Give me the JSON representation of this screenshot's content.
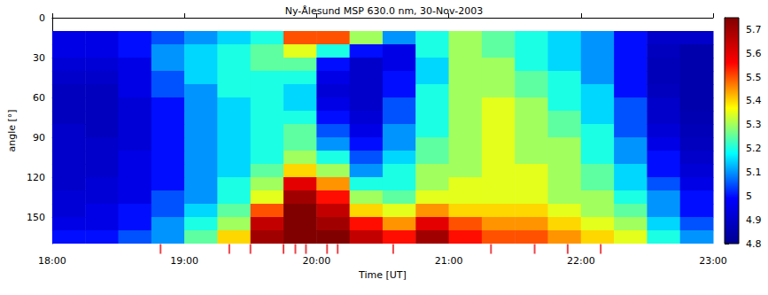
{
  "chart_data": {
    "type": "heatmap",
    "title": "Ny-Ålesund MSP 630.0 nm, 30-Nov-2003",
    "x_label": "Time [UT]",
    "y_label": "angle [°]",
    "grid": false,
    "xlim": [
      18,
      23
    ],
    "xticks": [
      {
        "value": 18,
        "label": "18:00"
      },
      {
        "value": 19,
        "label": "19:00"
      },
      {
        "value": 20,
        "label": "20:00"
      },
      {
        "value": 21,
        "label": "21:00"
      },
      {
        "value": 22,
        "label": "22:00"
      },
      {
        "value": 23,
        "label": "23:00"
      }
    ],
    "ylim": [
      0,
      170
    ],
    "yticks": [
      0,
      30,
      60,
      90,
      120,
      150
    ],
    "x_edges": [
      18,
      18.25,
      18.5,
      18.75,
      19,
      19.25,
      19.5,
      19.75,
      20,
      20.25,
      20.5,
      20.75,
      21,
      21.25,
      21.5,
      21.75,
      22,
      22.25,
      22.5,
      22.75,
      23
    ],
    "y_edges": [
      10,
      20,
      30,
      40,
      50,
      60,
      70,
      80,
      90,
      100,
      110,
      120,
      130,
      140,
      150,
      160,
      170
    ],
    "cells": [
      [
        4.95,
        4.95,
        5.0,
        5.05,
        5.1,
        5.15,
        5.2,
        5.5,
        5.5,
        5.3,
        5.1,
        5.2,
        5.3,
        5.25,
        5.2,
        5.15,
        5.1,
        5.0,
        4.9,
        4.9
      ],
      [
        4.95,
        4.95,
        5.0,
        5.1,
        5.15,
        5.2,
        5.25,
        5.35,
        5.2,
        5.0,
        4.95,
        5.2,
        5.3,
        5.25,
        5.2,
        5.15,
        5.1,
        5.0,
        4.88,
        4.85
      ],
      [
        4.92,
        4.92,
        4.95,
        5.1,
        5.15,
        5.2,
        5.25,
        5.25,
        5.0,
        4.9,
        4.95,
        5.15,
        5.3,
        5.3,
        5.2,
        5.15,
        5.1,
        5.0,
        4.87,
        4.85
      ],
      [
        4.9,
        4.9,
        4.95,
        5.05,
        5.15,
        5.2,
        5.2,
        5.2,
        4.95,
        4.9,
        5.0,
        5.15,
        5.3,
        5.3,
        5.25,
        5.2,
        5.1,
        5.0,
        4.87,
        4.85
      ],
      [
        4.88,
        4.88,
        4.95,
        5.05,
        5.1,
        5.2,
        5.2,
        5.15,
        4.92,
        4.9,
        5.0,
        5.2,
        5.3,
        5.3,
        5.25,
        5.2,
        5.15,
        5.0,
        4.88,
        4.85
      ],
      [
        4.88,
        4.88,
        4.92,
        5.0,
        5.1,
        5.15,
        5.2,
        5.15,
        4.95,
        4.9,
        5.05,
        5.2,
        5.3,
        5.35,
        5.3,
        5.2,
        5.15,
        5.05,
        4.9,
        4.85
      ],
      [
        4.88,
        4.88,
        4.92,
        5.0,
        5.1,
        5.15,
        5.2,
        5.2,
        5.0,
        4.92,
        5.05,
        5.2,
        5.3,
        5.35,
        5.3,
        5.25,
        5.15,
        5.05,
        4.9,
        4.86
      ],
      [
        4.9,
        4.88,
        4.92,
        5.0,
        5.1,
        5.15,
        5.2,
        5.25,
        5.05,
        4.95,
        5.1,
        5.2,
        5.3,
        5.35,
        5.3,
        5.25,
        5.2,
        5.05,
        4.92,
        4.87
      ],
      [
        4.9,
        4.9,
        4.92,
        5.0,
        5.1,
        5.15,
        5.2,
        5.25,
        5.1,
        5.0,
        5.1,
        5.25,
        5.3,
        5.35,
        5.3,
        5.3,
        5.2,
        5.1,
        4.95,
        4.88
      ],
      [
        4.9,
        4.9,
        4.95,
        5.0,
        5.1,
        5.15,
        5.2,
        5.3,
        5.2,
        5.05,
        5.15,
        5.25,
        5.3,
        5.35,
        5.3,
        5.3,
        5.2,
        5.1,
        5.0,
        4.9
      ],
      [
        4.9,
        4.9,
        4.95,
        5.0,
        5.1,
        5.15,
        5.25,
        5.4,
        5.3,
        5.1,
        5.2,
        5.3,
        5.3,
        5.35,
        5.35,
        5.3,
        5.25,
        5.15,
        5.0,
        4.92
      ],
      [
        4.9,
        4.92,
        4.95,
        5.0,
        5.1,
        5.2,
        5.3,
        5.6,
        5.45,
        5.2,
        5.2,
        5.3,
        5.35,
        5.35,
        5.35,
        5.3,
        5.25,
        5.15,
        5.05,
        4.95
      ],
      [
        4.92,
        4.92,
        4.95,
        5.05,
        5.1,
        5.2,
        5.35,
        5.7,
        5.55,
        5.3,
        5.25,
        5.35,
        5.35,
        5.35,
        5.35,
        5.3,
        5.3,
        5.2,
        5.1,
        5.0
      ],
      [
        4.92,
        4.95,
        5.0,
        5.05,
        5.15,
        5.25,
        5.5,
        5.75,
        5.65,
        5.4,
        5.35,
        5.45,
        5.4,
        5.4,
        5.4,
        5.35,
        5.3,
        5.25,
        5.1,
        5.0
      ],
      [
        4.95,
        4.95,
        5.0,
        5.1,
        5.2,
        5.3,
        5.65,
        5.75,
        5.7,
        5.55,
        5.45,
        5.6,
        5.5,
        5.45,
        5.45,
        5.4,
        5.35,
        5.3,
        5.15,
        5.05
      ],
      [
        5.0,
        5.0,
        5.05,
        5.1,
        5.25,
        5.4,
        5.7,
        5.75,
        5.75,
        5.65,
        5.55,
        5.7,
        5.55,
        5.5,
        5.5,
        5.45,
        5.4,
        5.35,
        5.2,
        5.1
      ]
    ],
    "colorbar": {
      "range": [
        4.8,
        5.75
      ],
      "ticks": [
        4.8,
        4.9,
        5,
        5.1,
        5.2,
        5.3,
        5.4,
        5.5,
        5.6,
        5.7
      ]
    },
    "markers": {
      "x": [
        18.82,
        19.34,
        19.5,
        19.75,
        19.84,
        19.92,
        20.08,
        20.16,
        20.58,
        21.32,
        21.65,
        21.9,
        22.15
      ],
      "color": "#e8141c"
    }
  }
}
